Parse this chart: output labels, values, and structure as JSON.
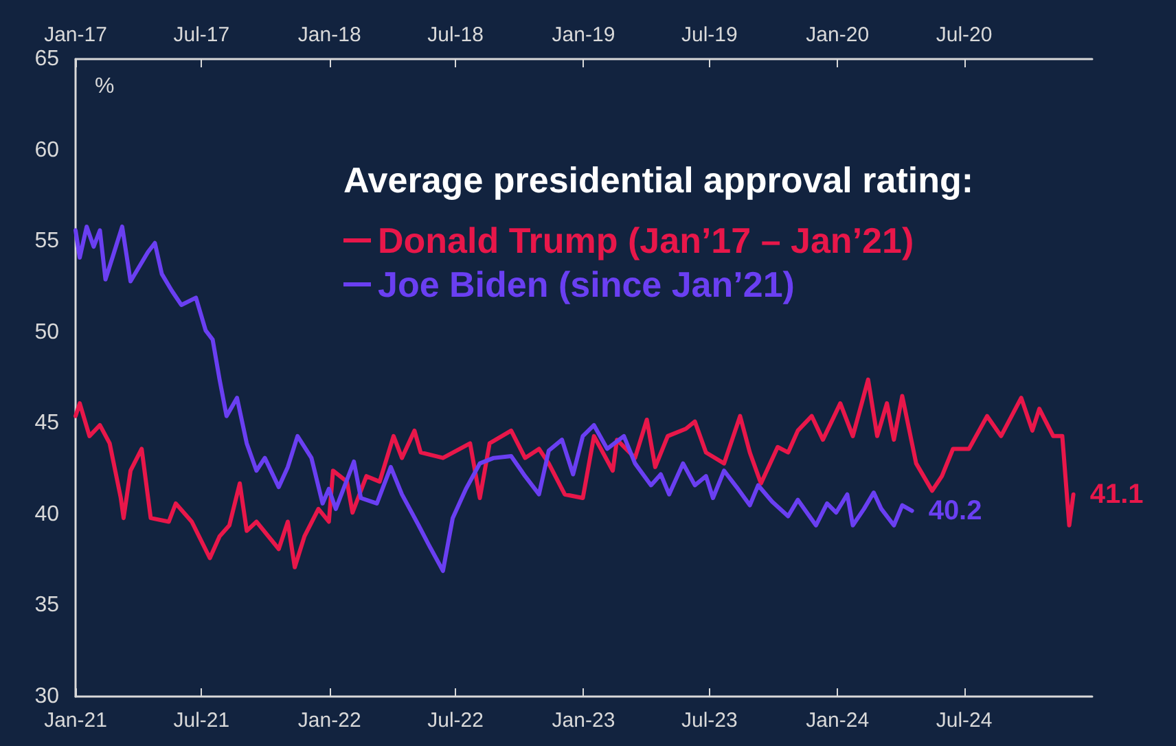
{
  "chart_data": {
    "type": "line",
    "ylabel": "%",
    "legend_title": "Average presidential approval rating:",
    "xlim": [
      "2021-01-01",
      "2025-01-01"
    ],
    "xticks": [
      {
        "value": "2021-01-01",
        "label": "Jan-21"
      },
      {
        "value": "2021-07-01",
        "label": "Jul-21"
      },
      {
        "value": "2022-01-01",
        "label": "Jan-22"
      },
      {
        "value": "2022-07-01",
        "label": "Jul-22"
      },
      {
        "value": "2023-01-01",
        "label": "Jan-23"
      },
      {
        "value": "2023-07-01",
        "label": "Jul-23"
      },
      {
        "value": "2024-01-01",
        "label": "Jan-24"
      },
      {
        "value": "2024-07-01",
        "label": "Jul-24"
      }
    ],
    "x2lim": [
      "2017-01-01",
      "2021-01-01"
    ],
    "x2ticks": [
      {
        "value": "2017-01-01",
        "label": "Jan-17"
      },
      {
        "value": "2017-07-01",
        "label": "Jul-17"
      },
      {
        "value": "2018-01-01",
        "label": "Jan-18"
      },
      {
        "value": "2018-07-01",
        "label": "Jul-18"
      },
      {
        "value": "2019-01-01",
        "label": "Jan-19"
      },
      {
        "value": "2019-07-01",
        "label": "Jul-19"
      },
      {
        "value": "2020-01-01",
        "label": "Jan-20"
      },
      {
        "value": "2020-07-01",
        "label": "Jul-20"
      }
    ],
    "ylim": [
      30,
      65
    ],
    "yticks": [
      30,
      35,
      40,
      45,
      50,
      55,
      60,
      65
    ],
    "grid": false,
    "legend": "top right",
    "marker": "none",
    "line_style": "solid",
    "series": [
      {
        "name": "Donald Trump (Jan’17 – Jan’21)",
        "color": "#e8174a",
        "axis": "x2",
        "x": [
          "2017-01-01",
          "2017-01-07",
          "2017-01-21",
          "2017-02-05",
          "2017-02-19",
          "2017-03-07",
          "2017-03-11",
          "2017-03-21",
          "2017-04-06",
          "2017-04-19",
          "2017-05-15",
          "2017-05-25",
          "2017-06-17",
          "2017-07-13",
          "2017-07-27",
          "2017-08-10",
          "2017-08-25",
          "2017-09-04",
          "2017-09-18",
          "2017-10-20",
          "2017-11-02",
          "2017-11-12",
          "2017-11-26",
          "2017-12-16",
          "2017-12-31",
          "2018-01-06",
          "2018-01-26",
          "2018-02-03",
          "2018-02-23",
          "2018-03-14",
          "2018-04-03",
          "2018-04-15",
          "2018-05-03",
          "2018-05-12",
          "2018-06-13",
          "2018-07-22",
          "2018-08-05",
          "2018-08-19",
          "2018-09-19",
          "2018-10-09",
          "2018-10-29",
          "2018-11-12",
          "2018-12-05",
          "2018-12-31",
          "2019-01-16",
          "2019-02-12",
          "2019-02-18",
          "2019-03-16",
          "2019-04-02",
          "2019-04-14",
          "2019-05-02",
          "2019-05-28",
          "2019-06-10",
          "2019-06-26",
          "2019-07-22",
          "2019-08-14",
          "2019-08-28",
          "2019-09-13",
          "2019-10-07",
          "2019-10-22",
          "2019-11-05",
          "2019-11-25",
          "2019-12-11",
          "2020-01-05",
          "2020-01-23",
          "2020-02-14",
          "2020-02-27",
          "2020-03-12",
          "2020-03-22",
          "2020-04-03",
          "2020-04-23",
          "2020-05-16",
          "2020-05-30",
          "2020-06-15",
          "2020-07-08",
          "2020-08-03",
          "2020-08-23",
          "2020-09-21",
          "2020-10-07",
          "2020-10-17",
          "2020-11-06",
          "2020-11-19",
          "2020-11-29",
          "2020-12-05"
        ],
        "values": [
          45.4,
          46.1,
          44.3,
          44.9,
          43.9,
          40.9,
          39.8,
          42.4,
          43.6,
          39.8,
          39.6,
          40.6,
          39.6,
          37.6,
          38.8,
          39.4,
          41.7,
          39.1,
          39.6,
          38.1,
          39.6,
          37.1,
          38.8,
          40.3,
          39.6,
          42.4,
          41.8,
          40.1,
          42.1,
          41.8,
          44.3,
          43.1,
          44.6,
          43.4,
          43.1,
          43.9,
          40.9,
          43.9,
          44.6,
          43.1,
          43.6,
          42.8,
          41.1,
          40.9,
          44.3,
          42.4,
          44.1,
          43.1,
          45.2,
          42.6,
          44.3,
          44.7,
          45.1,
          43.4,
          42.8,
          45.4,
          43.4,
          41.7,
          43.7,
          43.4,
          44.6,
          45.4,
          44.1,
          46.1,
          44.3,
          47.4,
          44.3,
          46.1,
          44.1,
          46.5,
          42.8,
          41.3,
          42.1,
          43.6,
          43.6,
          45.4,
          44.3,
          46.4,
          44.6,
          45.8,
          44.3,
          44.3,
          39.4,
          41.1
        ],
        "value_labels": [
          null,
          null,
          null,
          null,
          null,
          null,
          null,
          null,
          null,
          null,
          null,
          null,
          null,
          null,
          null,
          null,
          null,
          null,
          null,
          null,
          null,
          null,
          null,
          null,
          null,
          null,
          null,
          null,
          null,
          null,
          null,
          null,
          null,
          null,
          null,
          null,
          null,
          null,
          null,
          null,
          null,
          null,
          null,
          null,
          null,
          null,
          null,
          null,
          null,
          null,
          null,
          null,
          null,
          null,
          null,
          null,
          null,
          null,
          null,
          null,
          null,
          null,
          null,
          null,
          null,
          null,
          null,
          null,
          null,
          null,
          null,
          null,
          null,
          null,
          null,
          null,
          null,
          null,
          null,
          null,
          null,
          null,
          null,
          "41.1"
        ]
      },
      {
        "name": "Joe Biden (since Jan’21)",
        "color": "#6a3ff2",
        "x": [
          "2021-01-01",
          "2021-01-07",
          "2021-01-17",
          "2021-01-27",
          "2021-02-05",
          "2021-02-13",
          "2021-02-23",
          "2021-03-09",
          "2021-03-21",
          "2021-04-15",
          "2021-04-25",
          "2021-05-05",
          "2021-05-19",
          "2021-06-02",
          "2021-06-23",
          "2021-07-07",
          "2021-07-17",
          "2021-07-27",
          "2021-08-06",
          "2021-08-21",
          "2021-09-04",
          "2021-09-18",
          "2021-09-30",
          "2021-10-20",
          "2021-11-02",
          "2021-11-16",
          "2021-12-06",
          "2021-12-22",
          "2021-12-31",
          "2022-01-10",
          "2022-02-05",
          "2022-02-15",
          "2022-03-10",
          "2022-03-30",
          "2022-04-15",
          "2022-05-09",
          "2022-05-24",
          "2022-06-13",
          "2022-06-27",
          "2022-07-16",
          "2022-08-05",
          "2022-08-25",
          "2022-09-19",
          "2022-10-09",
          "2022-10-29",
          "2022-11-12",
          "2022-12-01",
          "2022-12-17",
          "2022-12-31",
          "2023-01-16",
          "2023-02-04",
          "2023-02-28",
          "2023-03-16",
          "2023-04-08",
          "2023-04-22",
          "2023-05-04",
          "2023-05-24",
          "2023-06-10",
          "2023-06-26",
          "2023-07-06",
          "2023-07-22",
          "2023-08-09",
          "2023-08-28",
          "2023-09-09",
          "2023-09-29",
          "2023-10-22",
          "2023-11-05",
          "2023-12-01",
          "2023-12-17",
          "2023-12-30",
          "2024-01-15",
          "2024-01-23",
          "2024-02-08",
          "2024-02-22",
          "2024-03-04",
          "2024-03-22",
          "2024-04-03",
          "2024-04-17"
        ],
        "values": [
          55.6,
          54.1,
          55.8,
          54.7,
          55.6,
          52.9,
          54.1,
          55.8,
          52.8,
          54.4,
          54.9,
          53.2,
          52.3,
          51.5,
          51.9,
          50.1,
          49.6,
          47.4,
          45.4,
          46.4,
          43.9,
          42.4,
          43.1,
          41.5,
          42.6,
          44.3,
          43.1,
          40.6,
          41.4,
          40.3,
          42.9,
          40.9,
          40.6,
          42.6,
          41.1,
          39.4,
          38.3,
          36.9,
          39.8,
          41.4,
          42.8,
          43.1,
          43.2,
          42.1,
          41.1,
          43.5,
          44.1,
          42.2,
          44.3,
          44.9,
          43.6,
          44.3,
          42.8,
          41.6,
          42.2,
          41.1,
          42.8,
          41.6,
          42.1,
          40.9,
          42.4,
          41.5,
          40.5,
          41.6,
          40.7,
          39.9,
          40.8,
          39.4,
          40.6,
          40.1,
          41.1,
          39.4,
          40.3,
          41.2,
          40.3,
          39.4,
          40.5,
          40.2
        ],
        "value_labels": [
          null,
          null,
          null,
          null,
          null,
          null,
          null,
          null,
          null,
          null,
          null,
          null,
          null,
          null,
          null,
          null,
          null,
          null,
          null,
          null,
          null,
          null,
          null,
          null,
          null,
          null,
          null,
          null,
          null,
          null,
          null,
          null,
          null,
          null,
          null,
          null,
          null,
          null,
          null,
          null,
          null,
          null,
          null,
          null,
          null,
          null,
          null,
          null,
          null,
          null,
          null,
          null,
          null,
          null,
          null,
          null,
          null,
          null,
          null,
          null,
          null,
          null,
          null,
          null,
          null,
          null,
          null,
          null,
          null,
          null,
          null,
          null,
          null,
          null,
          null,
          null,
          null,
          "40.2"
        ]
      }
    ]
  }
}
